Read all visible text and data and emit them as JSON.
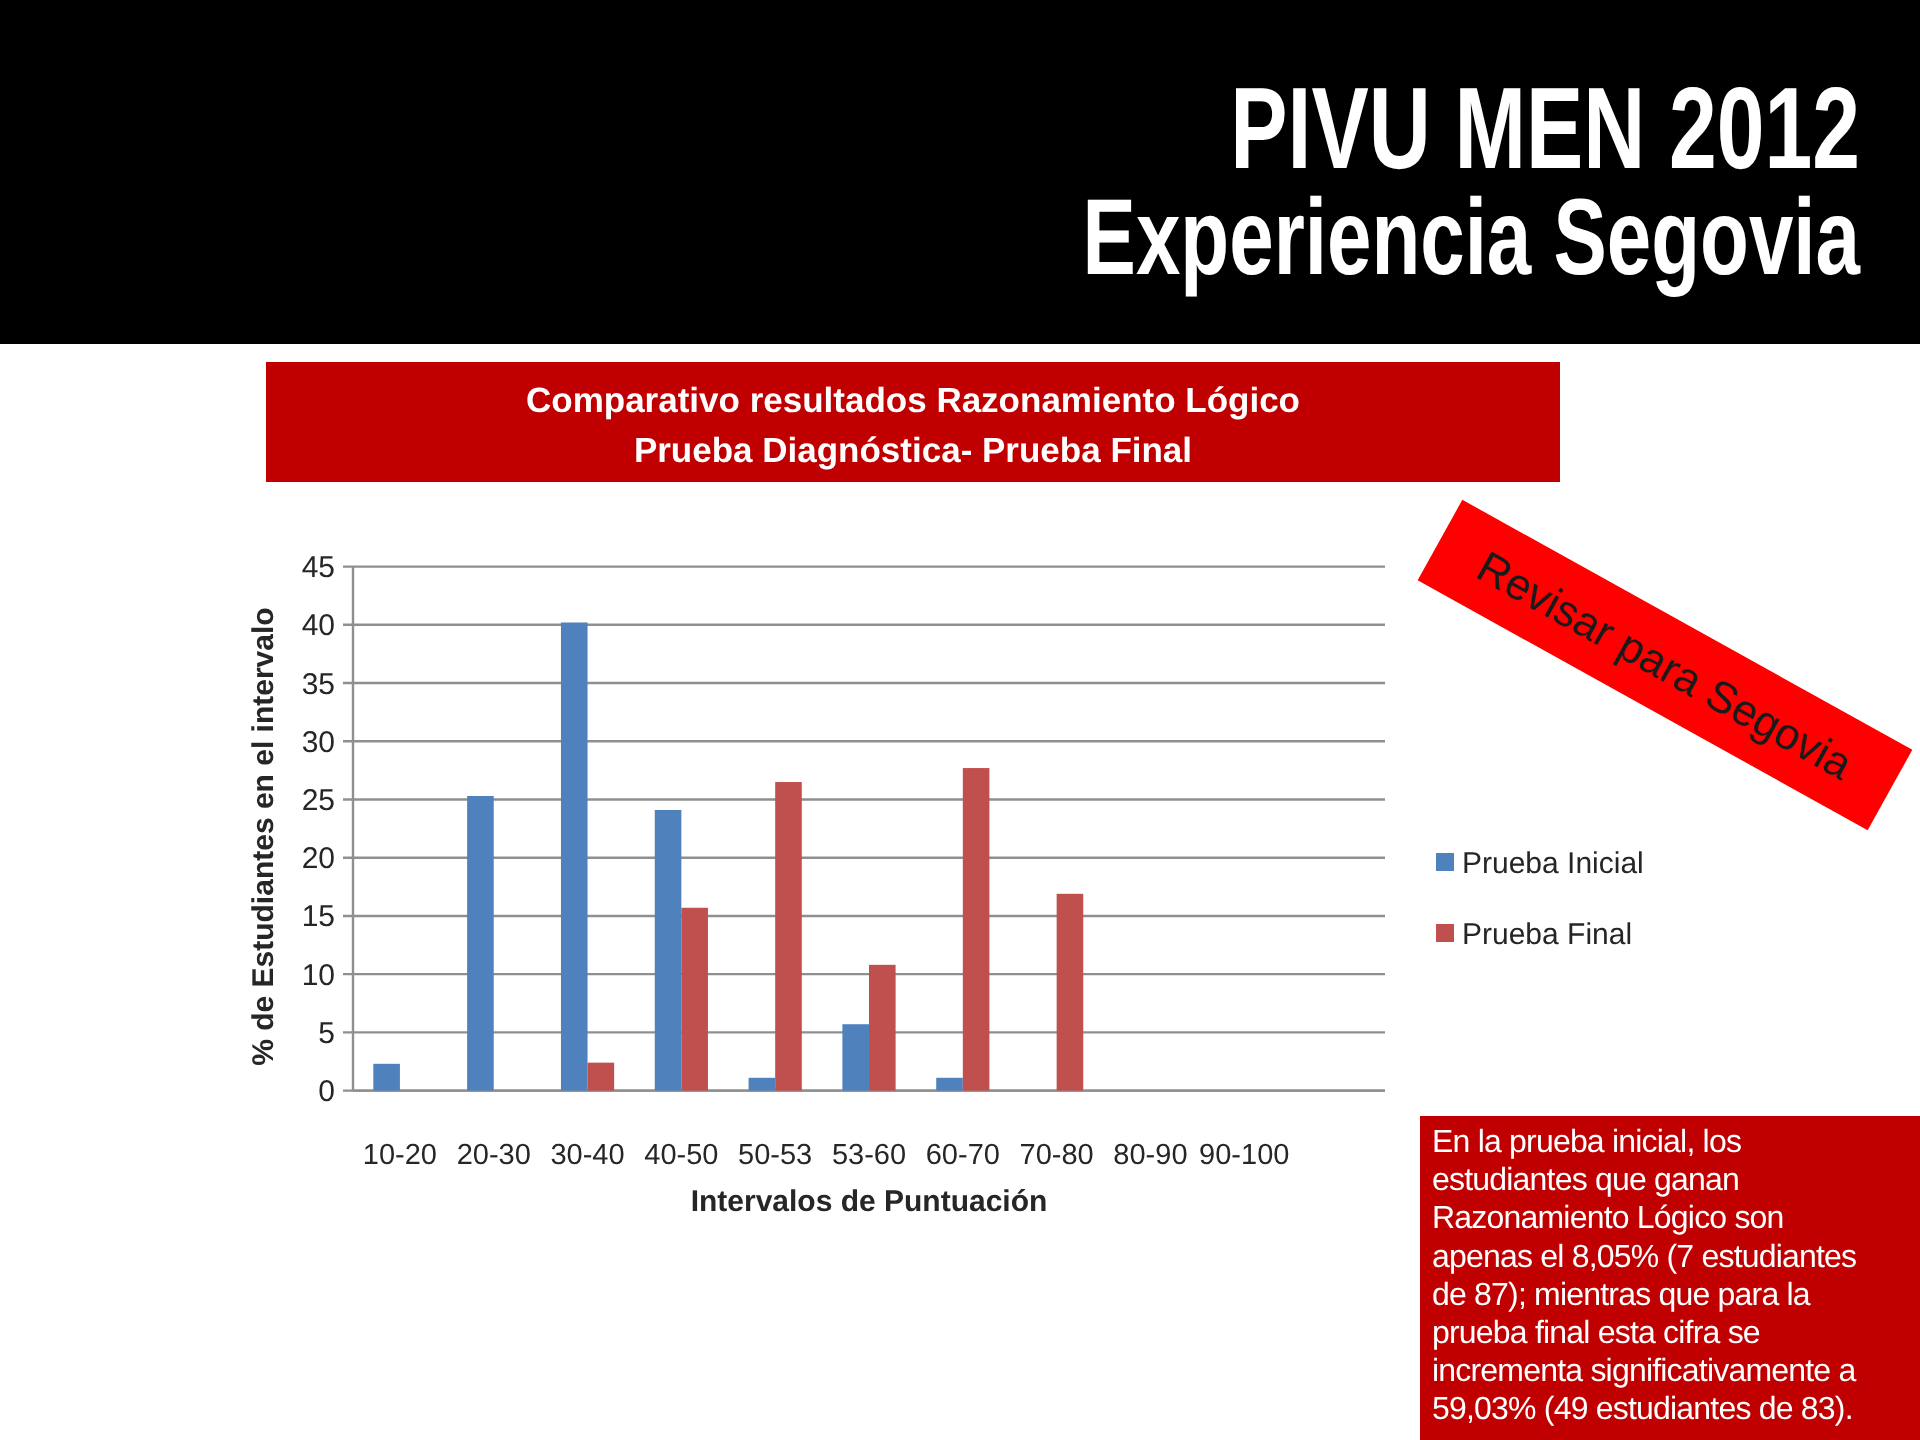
{
  "chart_data": {
    "type": "bar",
    "title": "Comparativo resultados Razonamiento Lógico",
    "subtitle": "Prueba Diagnóstica- Prueba Final",
    "xlabel": "Intervalos de Puntuación",
    "ylabel": "% de Estudiantes en el intervalo",
    "categories": [
      "10-20",
      "20-30",
      "30-40",
      "40-50",
      "50-53",
      "53-60",
      "60-70",
      "70-80",
      "80-90",
      "90-100",
      null
    ],
    "series": [
      {
        "name": "Prueba Inicial",
        "color": "#4f81bd",
        "values": [
          2.3,
          25.3,
          40.2,
          24.1,
          1.1,
          5.7,
          1.1,
          0,
          null,
          null,
          null
        ]
      },
      {
        "name": "Prueba Final",
        "color": "#c0504d",
        "values": [
          0,
          0,
          2.4,
          15.7,
          26.5,
          10.8,
          27.7,
          16.9,
          null,
          null,
          null
        ]
      }
    ],
    "ylim": [
      0,
      45
    ],
    "yticks": [
      0,
      5,
      10,
      15,
      20,
      25,
      30,
      35,
      40,
      45
    ],
    "grid": "y",
    "legend": "right",
    "annotations": [
      "PIVU MEN 2012",
      "Experiencia Segovia",
      "Revisar para Segovia",
      "En la prueba inicial, los estudiantes que ganan Razonamiento Lógico son apenas el 8,05% (7 estudiantes de 87); mientras que para la prueba final esta cifra se incrementa significativamente a 59,03% (49 estudiantes de 83)."
    ]
  }
}
